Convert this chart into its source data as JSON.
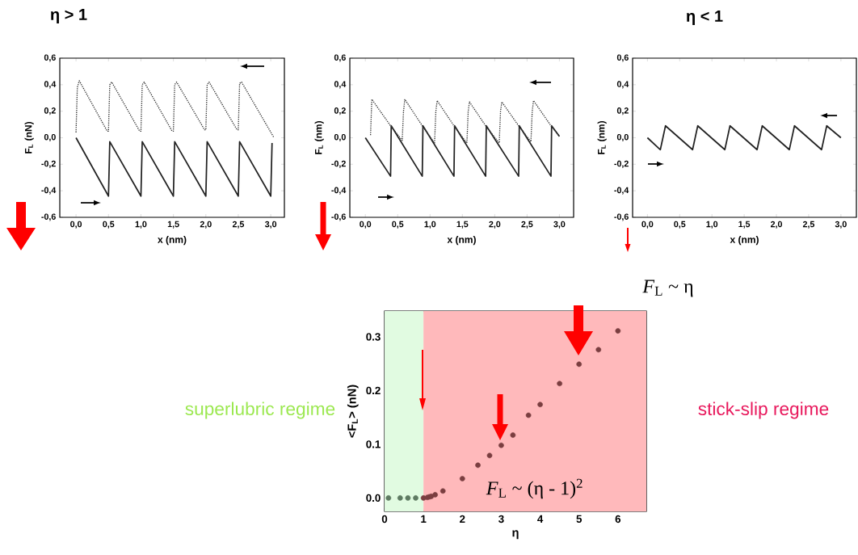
{
  "chart_data": [
    {
      "type": "line",
      "title": "η > 1",
      "xlabel": "x (nm)",
      "ylabel": "F$_{L}$ (nN)",
      "xlim": [
        -0.25,
        3.21
      ],
      "ylim": [
        -0.6,
        0.6
      ],
      "xticks": [
        {
          "value": 0,
          "label": "0,0"
        },
        {
          "value": 0.5,
          "label": "0,5"
        },
        {
          "value": 1,
          "label": "1,0"
        },
        {
          "value": 1.5,
          "label": "1,5"
        },
        {
          "value": 2,
          "label": "2,0"
        },
        {
          "value": 2.5,
          "label": "2,5"
        },
        {
          "value": 3,
          "label": "3,0"
        }
      ],
      "yticks": [
        {
          "value": -0.6,
          "label": "-0,6"
        },
        {
          "value": -0.4,
          "label": "-0,4"
        },
        {
          "value": -0.2,
          "label": "-0,2"
        },
        {
          "value": 0,
          "label": "0,0"
        },
        {
          "value": 0.2,
          "label": "0,2"
        },
        {
          "value": 0.4,
          "label": "0,4"
        },
        {
          "value": 0.6,
          "label": "0,6"
        }
      ],
      "series": [
        {
          "color": "#222222",
          "line_style": "solid",
          "x": [
            0,
            0.5,
            0.52,
            1.0,
            1.02,
            1.5,
            1.52,
            2.0,
            2.02,
            2.5,
            2.52,
            3.0,
            3.02
          ],
          "values": [
            0,
            -0.44,
            -0.03,
            -0.44,
            -0.03,
            -0.44,
            -0.03,
            -0.44,
            -0.03,
            -0.44,
            -0.03,
            -0.44,
            -0.04
          ]
        },
        {
          "color": "#333333",
          "line_style": "dotted",
          "x": [
            0,
            0.02,
            0.05,
            0.48,
            0.5,
            0.52,
            0.55,
            0.98,
            1.0,
            1.02,
            1.05,
            1.48,
            1.5,
            1.52,
            1.55,
            1.98,
            2.0,
            2.02,
            2.05,
            2.48,
            2.5,
            2.52,
            2.55,
            3.05
          ],
          "values": [
            0.04,
            0.38,
            0.43,
            0.05,
            0.05,
            0.4,
            0.42,
            0.05,
            0.05,
            0.4,
            0.42,
            0.05,
            0.05,
            0.4,
            0.42,
            0.06,
            0.06,
            0.4,
            0.42,
            0.06,
            0.06,
            0.41,
            0.42,
            0.0
          ]
        }
      ]
    },
    {
      "type": "line",
      "xlabel": "x (nm)",
      "ylabel": "F$_{L}$ (nm)",
      "xlim": [
        -0.24,
        3.22
      ],
      "ylim": [
        -0.6,
        0.6
      ],
      "xticks": [
        {
          "value": 0,
          "label": "0,0"
        },
        {
          "value": 0.5,
          "label": "0,5"
        },
        {
          "value": 1,
          "label": "1,0"
        },
        {
          "value": 1.5,
          "label": "1,5"
        },
        {
          "value": 2,
          "label": "2,0"
        },
        {
          "value": 2.5,
          "label": "2,5"
        },
        {
          "value": 3,
          "label": "3,0"
        }
      ],
      "yticks": [
        {
          "value": -0.6,
          "label": "-0,6"
        },
        {
          "value": -0.4,
          "label": "-0,4"
        },
        {
          "value": -0.2,
          "label": "-0,2"
        },
        {
          "value": 0,
          "label": "0,0"
        },
        {
          "value": 0.2,
          "label": "0,2"
        },
        {
          "value": 0.4,
          "label": "0,4"
        },
        {
          "value": 0.6,
          "label": "0,6"
        }
      ],
      "series": [
        {
          "color": "#222222",
          "line_style": "solid",
          "x": [
            0,
            0.39,
            0.4,
            0.88,
            0.89,
            1.37,
            1.38,
            1.86,
            1.87,
            2.37,
            2.38,
            2.87,
            2.88,
            3.0
          ],
          "values": [
            0,
            -0.29,
            0.09,
            -0.29,
            0.09,
            -0.29,
            0.09,
            -0.29,
            0.09,
            -0.29,
            0.09,
            -0.29,
            0.09,
            0.01
          ]
        },
        {
          "color": "#333333",
          "line_style": "dotted",
          "x": [
            0.08,
            0.1,
            0.39,
            0.57,
            0.59,
            0.61,
            0.88,
            1.07,
            1.09,
            1.11,
            1.37,
            1.57,
            1.59,
            1.61,
            1.86,
            2.07,
            2.09,
            2.11,
            2.37,
            2.56,
            2.58,
            2.6,
            2.87,
            3.0
          ],
          "values": [
            0.02,
            0.29,
            0.09,
            -0.02,
            0.2,
            0.29,
            0.09,
            -0.04,
            0.2,
            0.28,
            0.09,
            -0.04,
            0.2,
            0.27,
            0.09,
            -0.04,
            0.2,
            0.27,
            0.09,
            -0.03,
            0.2,
            0.28,
            0.09,
            0.01
          ]
        }
      ]
    },
    {
      "type": "line",
      "title": "η < 1",
      "xlabel": "x (nm)",
      "ylabel": "F$_{L}$ (nm)",
      "xlim": [
        -0.23,
        3.24
      ],
      "ylim": [
        -0.6,
        0.6
      ],
      "xticks": [
        {
          "value": 0,
          "label": "0,0"
        },
        {
          "value": 0.5,
          "label": "0,5"
        },
        {
          "value": 1,
          "label": "1,0"
        },
        {
          "value": 1.5,
          "label": "1,5"
        },
        {
          "value": 2,
          "label": "2,0"
        },
        {
          "value": 2.5,
          "label": "2,5"
        },
        {
          "value": 3,
          "label": "3,0"
        }
      ],
      "yticks": [
        {
          "value": -0.6,
          "label": "-0,6"
        },
        {
          "value": -0.4,
          "label": "-0,4"
        },
        {
          "value": -0.2,
          "label": "-0,2"
        },
        {
          "value": 0,
          "label": "0,0"
        },
        {
          "value": 0.2,
          "label": "0,2"
        },
        {
          "value": 0.4,
          "label": "0,4"
        },
        {
          "value": 0.6,
          "label": "0,6"
        }
      ],
      "series": [
        {
          "color": "#222222",
          "line_style": "solid",
          "x": [
            0,
            0.2,
            0.28,
            0.7,
            0.78,
            1.2,
            1.28,
            1.7,
            1.78,
            2.2,
            2.28,
            2.7,
            2.78,
            3.0
          ],
          "values": [
            0,
            -0.09,
            0.09,
            -0.09,
            0.09,
            -0.09,
            0.09,
            -0.09,
            0.09,
            -0.09,
            0.09,
            -0.09,
            0.09,
            0.0
          ]
        }
      ]
    },
    {
      "type": "scatter",
      "xlabel": "η",
      "ylabel": "<F$_{L}$> (nN)",
      "xlim": [
        0,
        6.73
      ],
      "ylim": [
        -0.025,
        0.348
      ],
      "marker": "circle",
      "xticks": [
        0,
        1,
        2,
        3,
        4,
        5,
        6
      ],
      "yticks": [
        {
          "value": 0,
          "label": "0.0"
        },
        {
          "value": 0.1,
          "label": "0.1"
        },
        {
          "value": 0.2,
          "label": "0.2"
        },
        {
          "value": 0.3,
          "label": "0.3"
        }
      ],
      "bands": [
        {
          "axis": "x",
          "from": 0,
          "to": 1,
          "label": "superlubric regime",
          "color": "#e1fbe1"
        },
        {
          "axis": "x",
          "from": 1,
          "to": 6.73,
          "label": "stick-slip regime",
          "color": "#ffb9bb"
        }
      ],
      "annotations": [
        "*F*$_{L}$ ~ (η - 1)$^{2}$",
        "*F*$_{L}$ ~ η"
      ],
      "series": [
        {
          "color": "#5e7a62",
          "x": [
            0.1,
            0.4,
            0.6,
            0.8
          ],
          "values": [
            0,
            0,
            0,
            0
          ]
        },
        {
          "color": "#7a3e40",
          "x": [
            1.0,
            1.1,
            1.15,
            1.2,
            1.3,
            1.5,
            2,
            2.4,
            2.7,
            3,
            3.3,
            3.7,
            4,
            4.5,
            5,
            5.5,
            6
          ],
          "values": [
            0,
            0.001,
            0.002,
            0.003,
            0.006,
            0.013,
            0.036,
            0.061,
            0.079,
            0.098,
            0.117,
            0.154,
            0.174,
            0.213,
            0.249,
            0.276,
            0.311
          ]
        }
      ]
    }
  ]
}
